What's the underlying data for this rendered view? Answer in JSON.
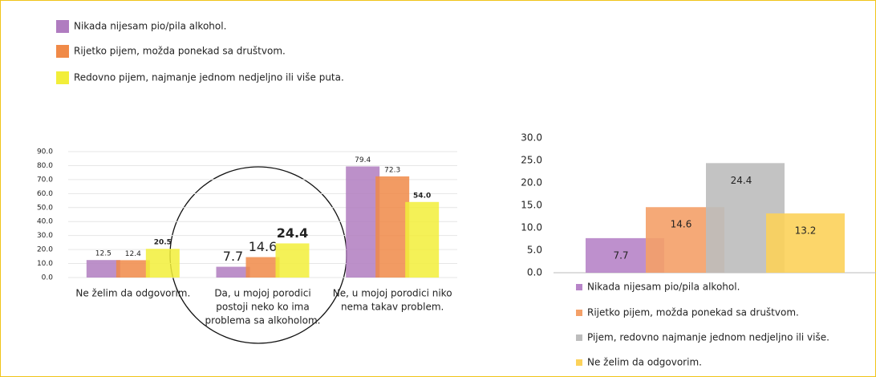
{
  "chart_data": [
    {
      "type": "bar",
      "categories": [
        [
          "Ne želim da odgovorim."
        ],
        [
          "Da, u mojoj porodici",
          "postoji neko ko ima",
          "problema sa alkoholom."
        ],
        [
          "Ne, u mojoj porodici niko",
          "nema takav problem."
        ]
      ],
      "series": [
        {
          "name": "Nikada nijesam pio/pila alkohol.",
          "color": "#b07cc0",
          "values": [
            12.5,
            7.7,
            79.4
          ]
        },
        {
          "name": "Rijetko pijem, možda ponekad sa društvom.",
          "color": "#f08a48",
          "values": [
            12.4,
            14.6,
            72.3
          ]
        },
        {
          "name": "Redovno pijem, najmanje jednom nedjeljno ili više puta.",
          "color": "#f2ee3a",
          "values": [
            20.5,
            24.4,
            54.0
          ],
          "value_labels": [
            "20.5",
            "24.4",
            "54.0"
          ]
        }
      ],
      "ylim": [
        0,
        90
      ],
      "yticks": [
        {
          "value": 0,
          "label": "0.0"
        },
        {
          "value": 10,
          "label": "10.0"
        },
        {
          "value": 20,
          "label": "20.0"
        },
        {
          "value": 30,
          "label": "30.0"
        },
        {
          "value": 40,
          "label": "40.0"
        },
        {
          "value": 50,
          "label": "50.0"
        },
        {
          "value": 60,
          "label": "60.0"
        },
        {
          "value": 70,
          "label": "70.0"
        },
        {
          "value": 80,
          "label": "80.0"
        },
        {
          "value": 90,
          "label": "90.0"
        }
      ],
      "grid": true
    },
    {
      "type": "bar",
      "series": [
        {
          "name": "Nikada nijesam pio/pila alkohol.",
          "color": "#b784c8",
          "values": [
            7.7
          ]
        },
        {
          "name": "Rijetko pijem, možda ponekad sa društvom.",
          "color": "#f4a068",
          "values": [
            14.6
          ]
        },
        {
          "name": "Pijem, redovno najmanje jednom nedjeljno ili više.",
          "color": "#bdbdbd",
          "values": [
            24.4
          ]
        },
        {
          "name": "Ne želim da odgovorim.",
          "color": "#fcd25a",
          "values": [
            13.2
          ]
        }
      ],
      "ylim": [
        0,
        30
      ],
      "yticks": [
        {
          "value": 0,
          "label": "0.0"
        },
        {
          "value": 5,
          "label": "5.0"
        },
        {
          "value": 10,
          "label": "10.0"
        },
        {
          "value": 15,
          "label": "15.0"
        },
        {
          "value": 20,
          "label": "20.0"
        },
        {
          "value": 25,
          "label": "25.0"
        },
        {
          "value": 30,
          "label": "30.0"
        }
      ],
      "grid": false
    }
  ]
}
